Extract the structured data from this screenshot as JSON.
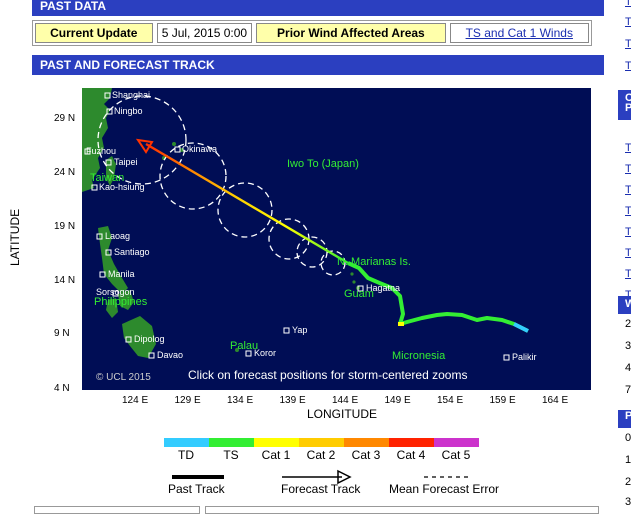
{
  "sections": {
    "past_data_title": "PAST DATA",
    "track_title": "PAST AND FORECAST TRACK"
  },
  "info_row": {
    "current_update_label": "Current Update",
    "current_update_value": "5 Jul, 2015 0:00",
    "prior_areas_label": "Prior Wind Affected Areas",
    "prior_areas_link": "TS and Cat 1 Winds"
  },
  "map": {
    "places": [
      {
        "name": "Shanghai",
        "dot": true
      },
      {
        "name": "Ningbo",
        "dot": true
      },
      {
        "name": "Fuzhou",
        "dot": true
      },
      {
        "name": "Taipei",
        "dot": true
      },
      {
        "name": "Kao-hsiung",
        "dot": true
      },
      {
        "name": "Okinawa",
        "dot": true
      },
      {
        "name": "Laoag",
        "dot": true
      },
      {
        "name": "Santiago",
        "dot": true
      },
      {
        "name": "Manila",
        "dot": true
      },
      {
        "name": "Sorsogon",
        "dot": true
      },
      {
        "name": "Dipolog",
        "dot": true
      },
      {
        "name": "Davao",
        "dot": true
      },
      {
        "name": "Yap",
        "dot": true
      },
      {
        "name": "Koror",
        "dot": true
      },
      {
        "name": "Hagatna",
        "dot": true
      },
      {
        "name": "Palikir",
        "dot": true
      }
    ],
    "regions": [
      {
        "name": "Taiwan"
      },
      {
        "name": "Philippines"
      },
      {
        "name": "Iwo To (Japan)"
      },
      {
        "name": "N. Marianas Is."
      },
      {
        "name": "Guam"
      },
      {
        "name": "Palau"
      },
      {
        "name": "Micronesia"
      }
    ],
    "copyright": "© UCL 2015",
    "instruction": "Click on forecast positions for storm-centered zooms"
  },
  "axes": {
    "x_title": "LONGITUDE",
    "y_title": "LATITUDE",
    "x_ticks": [
      "124 E",
      "129 E",
      "134 E",
      "139 E",
      "144 E",
      "149 E",
      "154 E",
      "159 E",
      "164 E"
    ],
    "y_ticks": [
      "29 N",
      "24 N",
      "19 N",
      "14 N",
      "9 N",
      "4 N"
    ]
  },
  "legend": {
    "categories": [
      {
        "label": "TD",
        "color": "#33ccff"
      },
      {
        "label": "TS",
        "color": "#33ee33"
      },
      {
        "label": "Cat 1",
        "color": "#ffff00"
      },
      {
        "label": "Cat 2",
        "color": "#ffcc00"
      },
      {
        "label": "Cat 3",
        "color": "#ff8800"
      },
      {
        "label": "Cat 4",
        "color": "#ff2200"
      },
      {
        "label": "Cat 5",
        "color": "#cc33cc"
      }
    ],
    "past_track": "Past Track",
    "forecast_track": "Forecast Track",
    "mean_error": "Mean Forecast Error"
  },
  "right_column": {
    "links": [
      "To",
      "To",
      "To",
      "To",
      "To",
      "To",
      "To",
      "To",
      "To",
      "To",
      "To",
      "To"
    ],
    "small_items": [
      "C",
      "P",
      "W",
      "2",
      "3",
      "4",
      "7",
      "P",
      "0",
      "1",
      "2",
      "3"
    ]
  }
}
